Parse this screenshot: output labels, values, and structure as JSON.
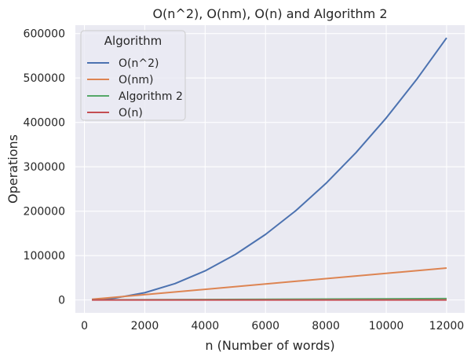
{
  "chart_data": {
    "type": "line",
    "title": "O(n^2), O(nm), O(n) and Algorithm 2",
    "xlabel": "n (Number of words)",
    "ylabel": "Operations",
    "xlim": [
      -300,
      12600
    ],
    "ylim": [
      -29000,
      619000
    ],
    "xticks": [
      0,
      2000,
      4000,
      6000,
      8000,
      10000,
      12000
    ],
    "yticks": [
      0,
      100000,
      200000,
      300000,
      400000,
      500000,
      600000
    ],
    "xtick_labels": [
      "0",
      "2000",
      "4000",
      "6000",
      "8000",
      "10000",
      "12000"
    ],
    "ytick_labels": [
      "0",
      "100000",
      "200000",
      "300000",
      "400000",
      "500000",
      "600000"
    ],
    "grid": true,
    "background": "#eaeaf2",
    "legend": {
      "title": "Algorithm",
      "placement": "top-left"
    },
    "series": [
      {
        "name": "O(n^2)",
        "color": "#4c72b0",
        "x": [
          250,
          1000,
          2000,
          3000,
          4000,
          5000,
          6000,
          7000,
          8000,
          9000,
          10000,
          11000,
          12000
        ],
        "y": [
          260,
          4100,
          16400,
          36900,
          65600,
          102500,
          147600,
          200900,
          262400,
          332100,
          410000,
          496100,
          590400
        ]
      },
      {
        "name": "O(nm)",
        "color": "#dd8452",
        "x": [
          250,
          12000
        ],
        "y": [
          1500,
          72000
        ]
      },
      {
        "name": "Algorithm 2",
        "color": "#55a868",
        "x": [
          250,
          12000
        ],
        "y": [
          100,
          3000
        ]
      },
      {
        "name": "O(n)",
        "color": "#c44e52",
        "x": [
          250,
          12000
        ],
        "y": [
          0,
          0
        ]
      }
    ]
  }
}
